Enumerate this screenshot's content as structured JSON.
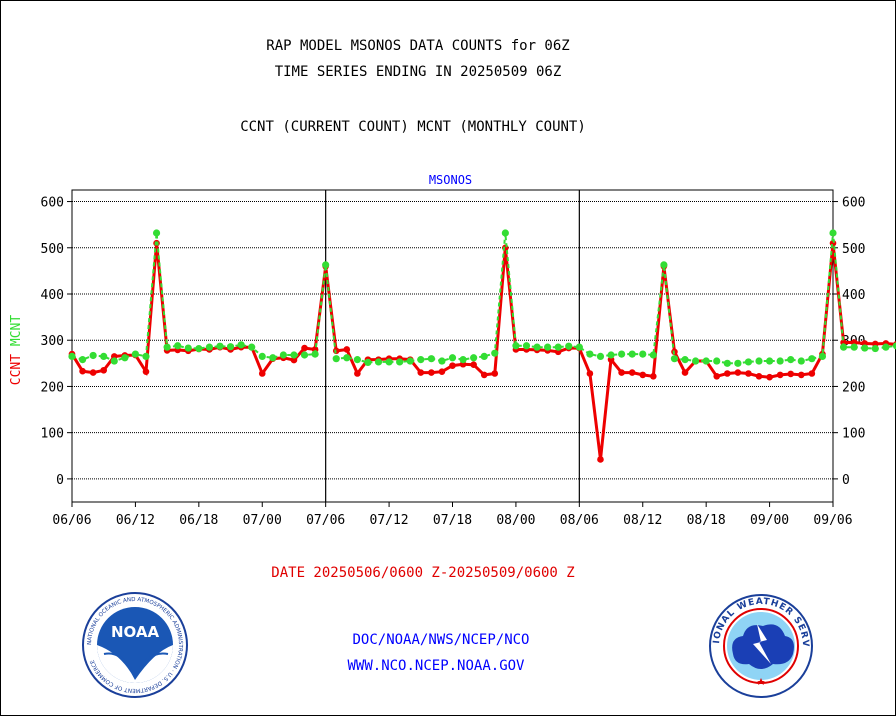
{
  "header": {
    "title_line1": "RAP MODEL MSONOS DATA COUNTS for 06Z",
    "title_line2": "TIME SERIES ENDING IN 20250509 06Z",
    "subtitle": "CCNT (CURRENT COUNT) MCNT (MONTHLY COUNT)"
  },
  "footer": {
    "date_range": "DATE 20250506/0600 Z-20250509/0600 Z",
    "org": "DOC/NOAA/NWS/NCEP/NCO",
    "website": "WWW.NCO.NCEP.NOAA.GOV"
  },
  "logos": {
    "noaa_text": "NOAA",
    "noaa_ring_text": "NATIONAL OCEANIC AND ATMOSPHERIC ADMINISTRATION · U.S. DEPARTMENT OF COMMERCE",
    "nws_ring_text": "NATIONAL WEATHER SERVICE"
  },
  "colors": {
    "ccnt": "#ee0000",
    "mcnt": "#33dd33",
    "plot_title": "#0000ff",
    "text": "#000000",
    "grid": "#000000"
  },
  "chart_data": {
    "type": "line",
    "title": "MSONOS",
    "ylabel_parts": [
      "CCNT",
      "MCNT"
    ],
    "ylim": [
      -50,
      625
    ],
    "yticks": [
      0,
      100,
      200,
      300,
      400,
      500,
      600
    ],
    "grid": true,
    "x_tick_labels": [
      "06/06",
      "06/12",
      "06/18",
      "07/00",
      "07/06",
      "07/12",
      "07/18",
      "08/00",
      "08/06",
      "08/12",
      "08/18",
      "09/00",
      "09/06"
    ],
    "panel_separators": [
      "07/06",
      "08/06"
    ],
    "x_step_hours": 1,
    "series": [
      {
        "name": "CCNT",
        "values": [
          270,
          233,
          230,
          235,
          265,
          267,
          268,
          232,
          510,
          278,
          279,
          277,
          281,
          280,
          285,
          280,
          285,
          285,
          228,
          260,
          262,
          257,
          283,
          280,
          460,
          277,
          280,
          228,
          258,
          258,
          260,
          260,
          258,
          230,
          230,
          232,
          245,
          248,
          247,
          225,
          228,
          500,
          280,
          280,
          279,
          278,
          275,
          283,
          283,
          228,
          42,
          258,
          230,
          230,
          225,
          222,
          460,
          275,
          230,
          255,
          255,
          222,
          228,
          230,
          228,
          222,
          220,
          225,
          227,
          225,
          228,
          270,
          510,
          295,
          295,
          293,
          292,
          293,
          291,
          290,
          265,
          225,
          275,
          245,
          245,
          245,
          260,
          495,
          265,
          237,
          285,
          262,
          283,
          255
        ]
      },
      {
        "name": "MCNT",
        "values": [
          265,
          258,
          267,
          265,
          255,
          262,
          270,
          265,
          532,
          285,
          288,
          283,
          282,
          285,
          287,
          286,
          290,
          285,
          265,
          262,
          268,
          268,
          268,
          270,
          463,
          260,
          262,
          258,
          252,
          253,
          253,
          253,
          255,
          258,
          260,
          255,
          262,
          258,
          262,
          265,
          272,
          532,
          288,
          288,
          285,
          285,
          285,
          287,
          285,
          270,
          265,
          268,
          270,
          270,
          270,
          268,
          463,
          260,
          258,
          255,
          255,
          255,
          250,
          250,
          253,
          255,
          255,
          255,
          258,
          255,
          260,
          265,
          532,
          285,
          285,
          283,
          282,
          285,
          288,
          285,
          265,
          268,
          270,
          260,
          260,
          262,
          270,
          485,
          260,
          255,
          255,
          252,
          252,
          250
        ]
      }
    ]
  }
}
